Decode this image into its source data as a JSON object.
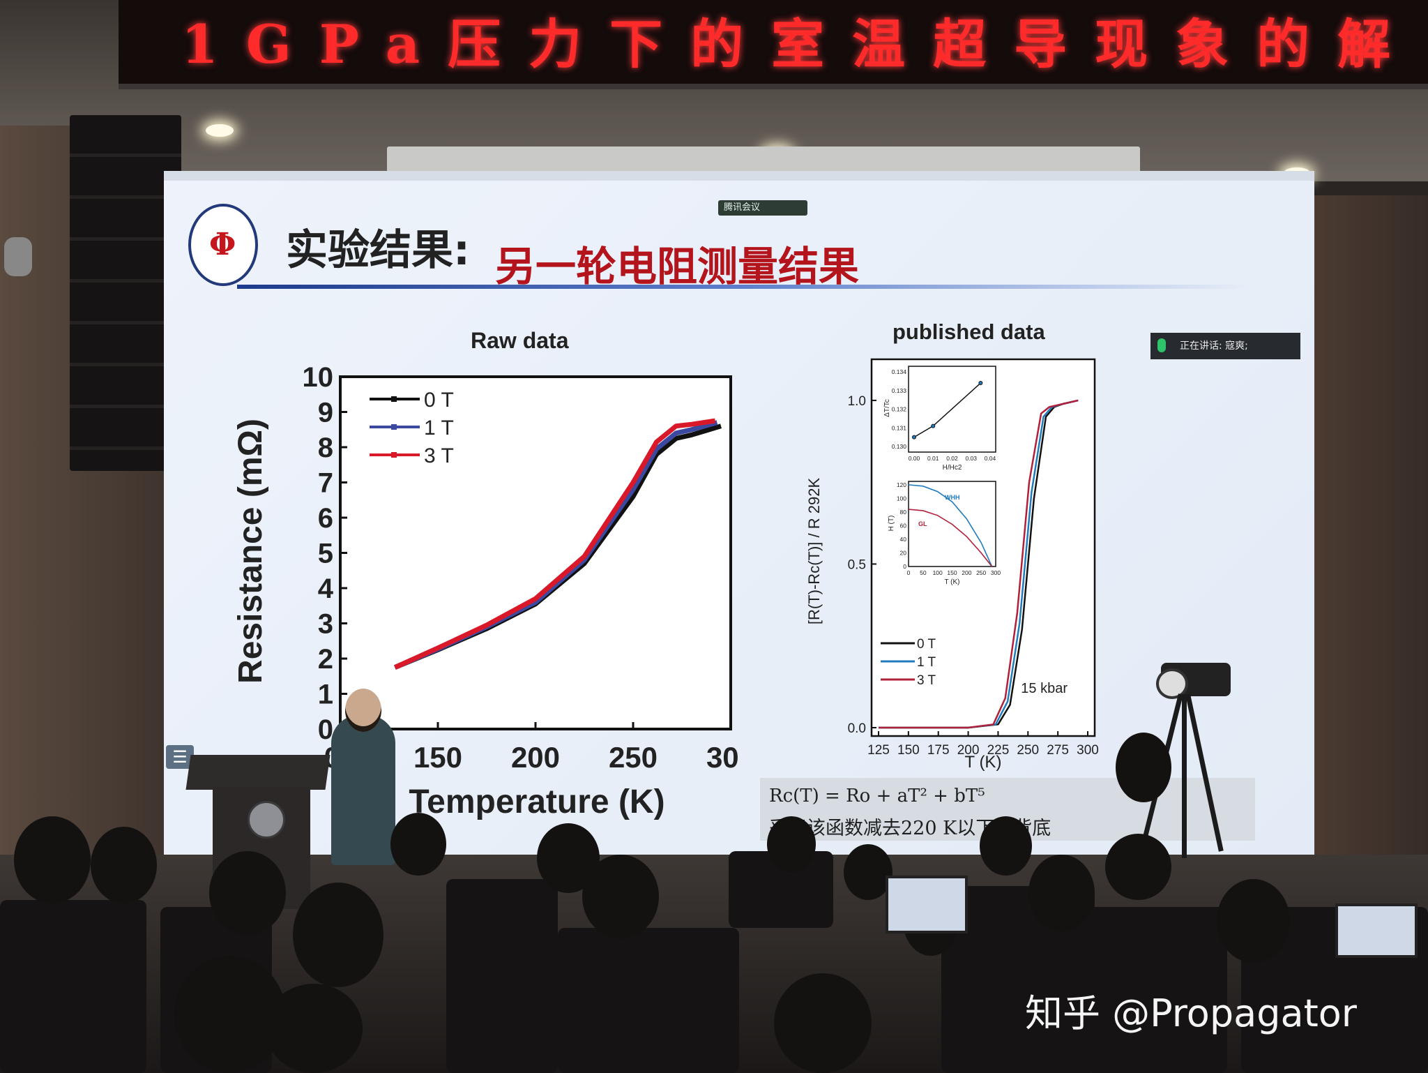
{
  "banner": {
    "text": "1GPa压力下的室温超导现象的解"
  },
  "meeting_app": {
    "label": "腾讯会议"
  },
  "slide": {
    "title_black": "实验结果:",
    "title_red": "另一轮电阻测量结果",
    "speaking_label": "正在讲话: 寇爽;"
  },
  "left_chart": {
    "chart_data": {
      "type": "line",
      "title": "Raw data",
      "xlabel": "Temperature (K)",
      "ylabel": "Resistance (mΩ)",
      "xlim": [
        100,
        300
      ],
      "ylim": [
        0,
        10
      ],
      "x_ticks": [
        "00",
        "150",
        "200",
        "250",
        "300"
      ],
      "y_ticks": [
        "0",
        "1",
        "2",
        "3",
        "4",
        "5",
        "6",
        "7",
        "8",
        "9",
        "10"
      ],
      "legend_position": "top-left",
      "series": [
        {
          "name": "0 T",
          "color": "#111111",
          "x": [
            128,
            150,
            175,
            200,
            225,
            250,
            262,
            272,
            280,
            295
          ],
          "y": [
            1.75,
            2.25,
            2.85,
            3.55,
            4.7,
            6.6,
            7.8,
            8.25,
            8.35,
            8.6
          ]
        },
        {
          "name": "1 T",
          "color": "#3b4aa0",
          "x": [
            128,
            150,
            175,
            200,
            225,
            250,
            262,
            272,
            280,
            293
          ],
          "y": [
            1.75,
            2.27,
            2.9,
            3.6,
            4.8,
            6.8,
            7.95,
            8.4,
            8.5,
            8.7
          ]
        },
        {
          "name": "3 T",
          "color": "#d9192a",
          "x": [
            128,
            150,
            175,
            200,
            225,
            250,
            262,
            272,
            280,
            292
          ],
          "y": [
            1.75,
            2.3,
            2.95,
            3.7,
            4.9,
            7.0,
            8.15,
            8.6,
            8.65,
            8.75
          ]
        }
      ]
    }
  },
  "right_chart": {
    "chart_data": {
      "type": "line",
      "title": "published data",
      "xlabel": "T (K)",
      "ylabel": "[R(T)-Rc(T)] / R 292K",
      "xlim": [
        125,
        300
      ],
      "ylim": [
        0,
        1.1
      ],
      "x_ticks": [
        "125",
        "150",
        "175",
        "200",
        "225",
        "250",
        "275",
        "300"
      ],
      "y_ticks": [
        "0.0",
        "0.5",
        "1.0"
      ],
      "annotation": "15 kbar",
      "legend_position": "bottom-left",
      "series": [
        {
          "name": "0 T",
          "color": "#111111",
          "x": [
            125,
            200,
            225,
            235,
            245,
            255,
            265,
            272,
            280,
            292
          ],
          "y": [
            0,
            0,
            0.01,
            0.07,
            0.3,
            0.7,
            0.95,
            0.98,
            0.99,
            1.0
          ]
        },
        {
          "name": "1 T",
          "color": "#1f7bbd",
          "x": [
            125,
            200,
            223,
            233,
            243,
            253,
            263,
            270,
            280,
            292
          ],
          "y": [
            0,
            0,
            0.01,
            0.08,
            0.32,
            0.72,
            0.95,
            0.98,
            0.99,
            1.0
          ]
        },
        {
          "name": "3 T",
          "color": "#b0203a",
          "x": [
            125,
            200,
            221,
            231,
            241,
            251,
            261,
            268,
            280,
            292
          ],
          "y": [
            0,
            0,
            0.01,
            0.09,
            0.35,
            0.75,
            0.96,
            0.98,
            0.99,
            1.0
          ]
        }
      ],
      "insets": [
        {
          "xlabel": "H/Hc2",
          "ylabel": "ΔT/Tc",
          "x_ticks": [
            "0.00",
            "0.01",
            "0.02",
            "0.03",
            "0.04"
          ],
          "y_ticks": [
            "0.130",
            "0.131",
            "0.132",
            "0.133",
            "0.134"
          ],
          "x": [
            0.0,
            0.01,
            0.035
          ],
          "y": [
            0.1305,
            0.1311,
            0.1334
          ]
        },
        {
          "xlabel": "T (K)",
          "ylabel": "H (T)",
          "x_ticks": [
            "0",
            "50",
            "100",
            "150",
            "200",
            "250",
            "300"
          ],
          "y_ticks": [
            "0",
            "20",
            "40",
            "60",
            "80",
            "100",
            "120"
          ],
          "series": [
            {
              "name": "WHH",
              "color": "#1f7bbd",
              "x": [
                0,
                50,
                100,
                150,
                200,
                250,
                287
              ],
              "y": [
                120,
                118,
                110,
                95,
                70,
                35,
                0
              ]
            },
            {
              "name": "GL",
              "color": "#b0203a",
              "x": [
                0,
                50,
                100,
                150,
                200,
                250,
                287
              ],
              "y": [
                84,
                82,
                75,
                62,
                44,
                20,
                0
              ]
            }
          ]
        }
      ]
    }
  },
  "formula": {
    "line1": "Rc(T) = Ro + aT² + bT⁵",
    "line2": "采用该函数减去220 K以下的背底"
  },
  "watermark": "知乎 @Propagator"
}
